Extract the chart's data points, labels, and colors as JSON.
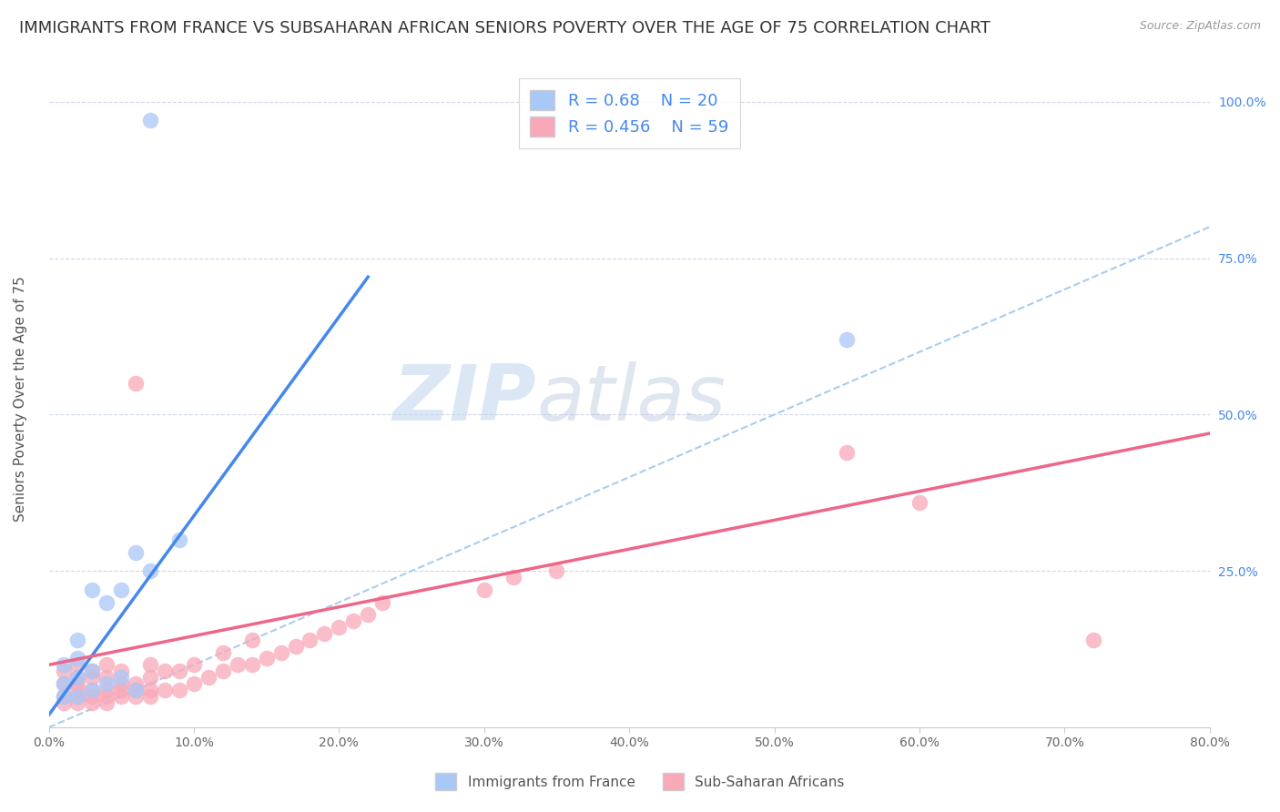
{
  "title": "IMMIGRANTS FROM FRANCE VS SUBSAHARAN AFRICAN SENIORS POVERTY OVER THE AGE OF 75 CORRELATION CHART",
  "source": "Source: ZipAtlas.com",
  "ylabel": "Seniors Poverty Over the Age of 75",
  "xlabel": "",
  "legend_label_1": "Immigrants from France",
  "legend_label_2": "Sub-Saharan Africans",
  "R1": 0.68,
  "N1": 20,
  "R2": 0.456,
  "N2": 59,
  "color1": "#a8c8f8",
  "color2": "#f8a8b8",
  "line_color1": "#4488ee",
  "line_color2": "#ee6688",
  "bg_color": "#ffffff",
  "grid_color": "#d0d8e8",
  "xlim": [
    0,
    0.8
  ],
  "ylim": [
    0,
    1.05
  ],
  "xtick_vals": [
    0.0,
    0.1,
    0.2,
    0.3,
    0.4,
    0.5,
    0.6,
    0.7,
    0.8
  ],
  "ytick_vals": [
    0.0,
    0.25,
    0.5,
    0.75,
    1.0
  ],
  "ytick_labels": [
    "",
    "25.0%",
    "50.0%",
    "75.0%",
    "100.0%"
  ],
  "france_x": [
    0.01,
    0.01,
    0.01,
    0.02,
    0.02,
    0.02,
    0.02,
    0.03,
    0.03,
    0.03,
    0.04,
    0.04,
    0.05,
    0.05,
    0.06,
    0.06,
    0.07,
    0.09,
    0.55,
    0.07
  ],
  "france_y": [
    0.05,
    0.07,
    0.1,
    0.05,
    0.08,
    0.11,
    0.14,
    0.06,
    0.09,
    0.22,
    0.07,
    0.2,
    0.08,
    0.22,
    0.06,
    0.28,
    0.25,
    0.3,
    0.62,
    0.97
  ],
  "subsaharan_x": [
    0.01,
    0.01,
    0.01,
    0.01,
    0.02,
    0.02,
    0.02,
    0.02,
    0.02,
    0.02,
    0.03,
    0.03,
    0.03,
    0.03,
    0.03,
    0.04,
    0.04,
    0.04,
    0.04,
    0.04,
    0.05,
    0.05,
    0.05,
    0.05,
    0.06,
    0.06,
    0.06,
    0.06,
    0.07,
    0.07,
    0.07,
    0.07,
    0.08,
    0.08,
    0.09,
    0.09,
    0.1,
    0.1,
    0.11,
    0.12,
    0.12,
    0.13,
    0.14,
    0.14,
    0.15,
    0.16,
    0.17,
    0.18,
    0.19,
    0.2,
    0.21,
    0.22,
    0.23,
    0.3,
    0.32,
    0.35,
    0.55,
    0.6,
    0.72
  ],
  "subsaharan_y": [
    0.04,
    0.05,
    0.07,
    0.09,
    0.04,
    0.05,
    0.06,
    0.07,
    0.08,
    0.1,
    0.04,
    0.05,
    0.06,
    0.08,
    0.09,
    0.04,
    0.05,
    0.06,
    0.08,
    0.1,
    0.05,
    0.06,
    0.07,
    0.09,
    0.05,
    0.06,
    0.07,
    0.55,
    0.05,
    0.06,
    0.08,
    0.1,
    0.06,
    0.09,
    0.06,
    0.09,
    0.07,
    0.1,
    0.08,
    0.09,
    0.12,
    0.1,
    0.1,
    0.14,
    0.11,
    0.12,
    0.13,
    0.14,
    0.15,
    0.16,
    0.17,
    0.18,
    0.2,
    0.22,
    0.24,
    0.25,
    0.44,
    0.36,
    0.14
  ],
  "blue_line_x": [
    0.0,
    0.22
  ],
  "blue_line_y": [
    0.02,
    0.72
  ],
  "pink_line_x": [
    0.0,
    0.8
  ],
  "pink_line_y": [
    0.1,
    0.47
  ],
  "ref_line_x": [
    0.0,
    1.0
  ],
  "ref_line_y": [
    0.0,
    1.0
  ],
  "watermark": "ZIPatlas",
  "title_fontsize": 13,
  "label_fontsize": 11,
  "tick_fontsize": 10,
  "legend_fontsize": 13
}
